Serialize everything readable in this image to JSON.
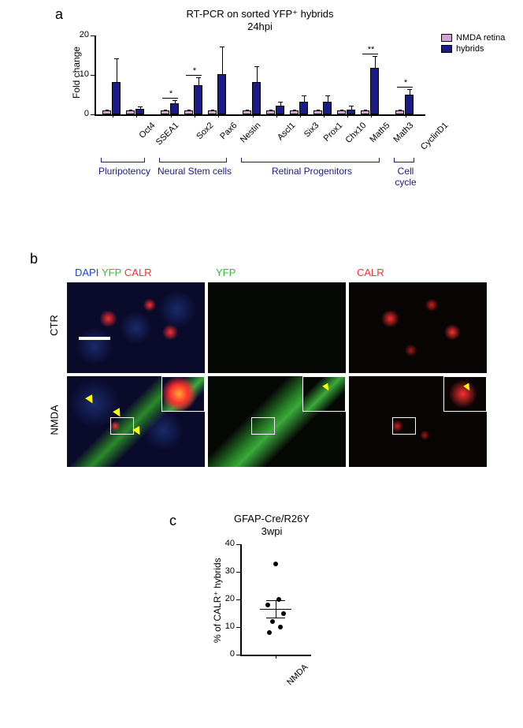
{
  "panel_a": {
    "label": "a",
    "title": "RT-PCR on sorted YFP⁺ hybrids",
    "subtitle": "24hpi",
    "ylabel": "Fold change",
    "ylim": [
      0,
      20
    ],
    "ytick_step": 10,
    "yticks": [
      0,
      10,
      20
    ],
    "legend": [
      {
        "label": "NMDA retina",
        "color": "#d4a5d4"
      },
      {
        "label": "hybrids",
        "color": "#1a1a8a"
      }
    ],
    "genes": [
      "Oct4",
      "SSEA1",
      "Sox2",
      "Pax6",
      "Nestin",
      "Ascl1",
      "Six3",
      "Prox1",
      "Chx10",
      "Math5",
      "Math3",
      "CyclinD1"
    ],
    "nmda_values": [
      1,
      1,
      1,
      1,
      1,
      1,
      1,
      1,
      1,
      1,
      1,
      1
    ],
    "hybrid_values": [
      8.2,
      1.5,
      2.8,
      7.5,
      10.3,
      8.2,
      2.2,
      3.3,
      3.3,
      1.3,
      11.8,
      5.0
    ],
    "nmda_errors": [
      0.3,
      0.3,
      0.2,
      0.3,
      0.3,
      0.3,
      0.3,
      0.3,
      0.3,
      0.3,
      0.3,
      0.3
    ],
    "hybrid_errors": [
      6.0,
      0.5,
      0.8,
      2.0,
      7.0,
      4.0,
      1.0,
      1.5,
      1.5,
      1.0,
      3.0,
      1.5
    ],
    "significance": {
      "2": "*",
      "3": "*",
      "10": "**",
      "11": "*"
    },
    "categories": [
      {
        "label": "Pluripotency",
        "start": 0,
        "end": 1
      },
      {
        "label": "Neural  Stem cells",
        "start": 2,
        "end": 4
      },
      {
        "label": "Retinal Progenitors",
        "start": 5,
        "end": 10
      },
      {
        "label": "Cell cycle",
        "start": 11,
        "end": 11
      }
    ],
    "bar_colors": {
      "nmda": "#d4a5d4",
      "hybrid": "#1a1a8a"
    },
    "axis_color": "#000000",
    "bg": "#ffffff",
    "label_fontsize": 12,
    "tick_fontsize": 11,
    "title_fontsize": 13,
    "category_color": "#1a1a8a"
  },
  "panel_b": {
    "label": "b",
    "col_headers": [
      {
        "parts": [
          {
            "text": "DAPI",
            "color": "#2040ff"
          },
          {
            "text": "/",
            "color": "#ffffff"
          },
          {
            "text": "YFP",
            "color": "#30c030"
          },
          {
            "text": "/",
            "color": "#ffffff"
          },
          {
            "text": "CALR",
            "color": "#ff3030"
          }
        ]
      },
      {
        "parts": [
          {
            "text": "YFP",
            "color": "#30c030"
          }
        ]
      },
      {
        "parts": [
          {
            "text": "CALR",
            "color": "#ff3030"
          }
        ]
      }
    ],
    "row_labels": [
      "CTR",
      "NMDA"
    ],
    "arrow_color": "#ffff00",
    "scalebar_color": "#ffffff",
    "inset_border": "#ffffff",
    "cell_bg": "#000000"
  },
  "panel_c": {
    "label": "c",
    "title": "GFAP-Cre/R26Y",
    "subtitle": "3wpi",
    "ylabel": "% of CALR⁺ hybrids",
    "ylim": [
      0,
      40
    ],
    "ytick_step": 10,
    "yticks": [
      0,
      10,
      20,
      30,
      40
    ],
    "xlabel": "NMDA",
    "points": [
      8,
      10,
      12,
      15,
      18,
      20,
      33
    ],
    "mean": 16.5,
    "sem": 3.2,
    "point_color": "#000000",
    "axis_color": "#000000",
    "bg": "#ffffff",
    "label_fontsize": 12
  }
}
